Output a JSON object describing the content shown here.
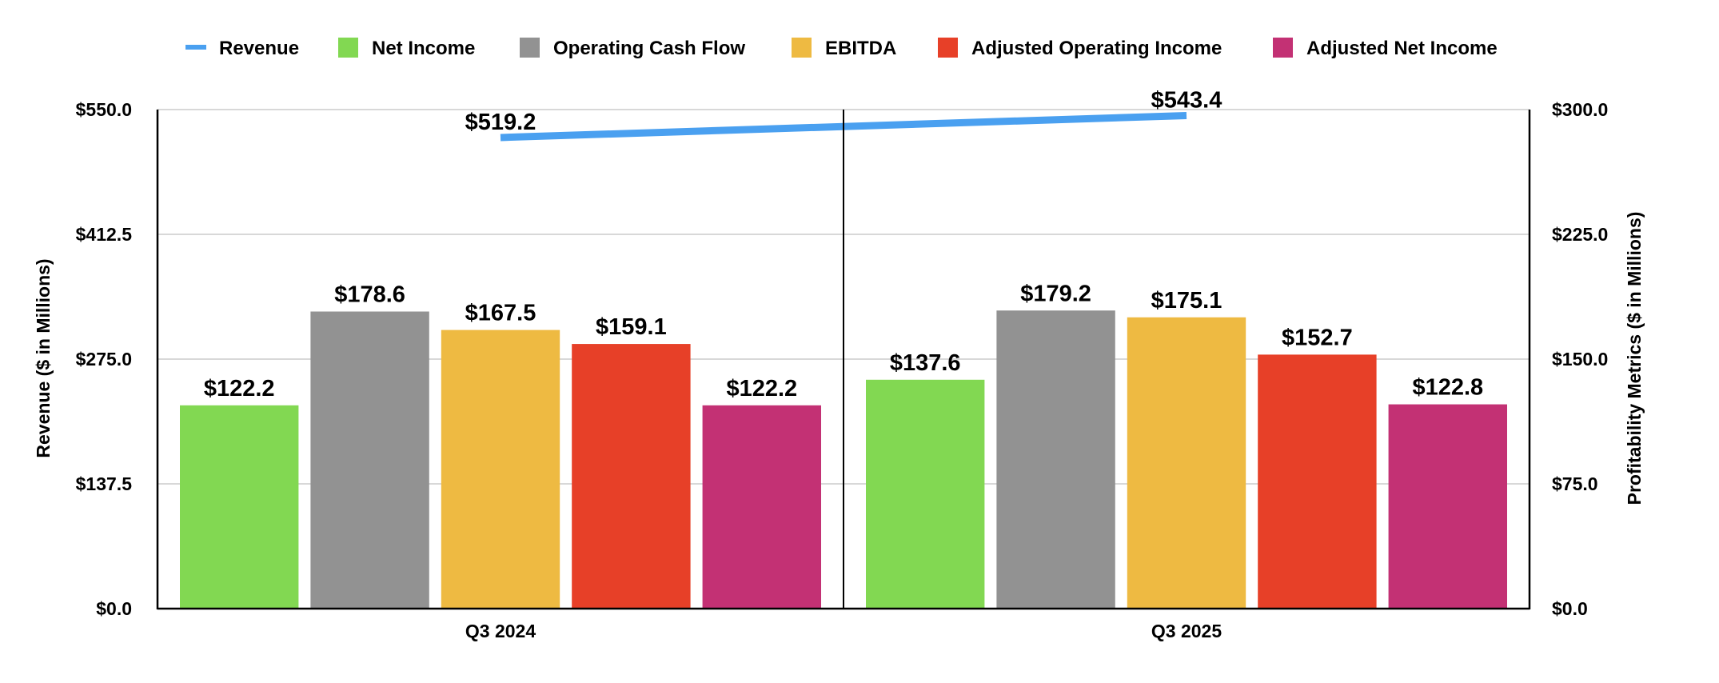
{
  "chart_data": {
    "type": "bar",
    "categories": [
      "Q3 2024",
      "Q3 2025"
    ],
    "bar_series": [
      {
        "name": "Net Income",
        "values": [
          122.2,
          137.6
        ],
        "color": "#82d852",
        "labels": [
          "$122.2",
          "$137.6"
        ]
      },
      {
        "name": "Operating Cash Flow",
        "values": [
          178.6,
          179.2
        ],
        "color": "#929292",
        "labels": [
          "$178.6",
          "$179.2"
        ]
      },
      {
        "name": "EBITDA",
        "values": [
          167.5,
          175.1
        ],
        "color": "#eeba42",
        "labels": [
          "$167.5",
          "$175.1"
        ]
      },
      {
        "name": "Adjusted Operating Income",
        "values": [
          159.1,
          152.7
        ],
        "color": "#e74028",
        "labels": [
          "$159.1",
          "$152.7"
        ]
      },
      {
        "name": "Adjusted Net Income",
        "values": [
          122.2,
          122.8
        ],
        "color": "#c33174",
        "labels": [
          "$122.2",
          "$122.8"
        ]
      }
    ],
    "line_series": {
      "name": "Revenue",
      "values": [
        519.2,
        543.4
      ],
      "color": "#4aa0f0",
      "labels": [
        "$519.2",
        "$543.4"
      ]
    },
    "legend_order": [
      "Revenue",
      "Net Income",
      "Operating Cash Flow",
      "EBITDA",
      "Adjusted Operating Income",
      "Adjusted Net Income"
    ],
    "legend_position": "top",
    "left_axis": {
      "label": "Revenue ($ in Millions)",
      "range": [
        0,
        550
      ],
      "ticks": [
        "$0.0",
        "$137.5",
        "$275.0",
        "$412.5",
        "$550.0"
      ]
    },
    "right_axis": {
      "label": "Profitability Metrics ($ in Millions)",
      "range": [
        0,
        300
      ],
      "ticks": [
        "$0.0",
        "$75.0",
        "$150.0",
        "$225.0",
        "$300.0"
      ]
    },
    "grid": true
  }
}
